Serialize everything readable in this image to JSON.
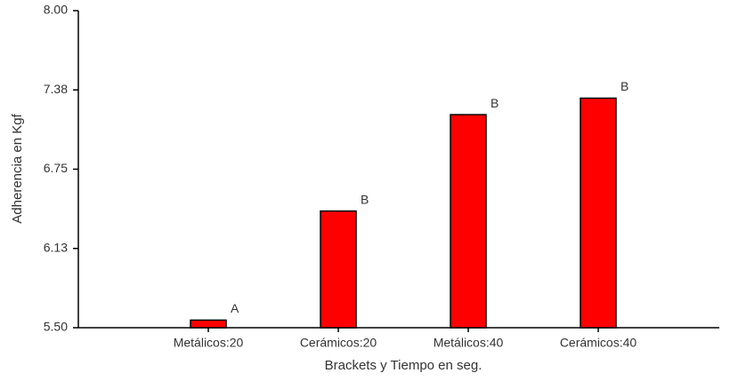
{
  "chart_data": {
    "type": "bar",
    "x_label": "Brackets y Tiempo en seg.",
    "y_label": "Adherencia en Kgf",
    "categories": [
      "Metálicos:20",
      "Cerámicos:20",
      "Metálicos:40",
      "Cerámicos:40"
    ],
    "values": [
      5.56,
      6.42,
      7.18,
      7.31
    ],
    "annotations": [
      "A",
      "B",
      "B",
      "B"
    ],
    "color": "#ff0000",
    "ylim": [
      5.5,
      8
    ],
    "yticks": [
      {
        "value": 5.5,
        "label": "5.50"
      },
      {
        "value": 6.125,
        "label": "6.13"
      },
      6.75,
      {
        "value": 7.375,
        "label": "7.38"
      },
      {
        "value": 8,
        "label": "8.00"
      }
    ],
    "grid": false
  }
}
